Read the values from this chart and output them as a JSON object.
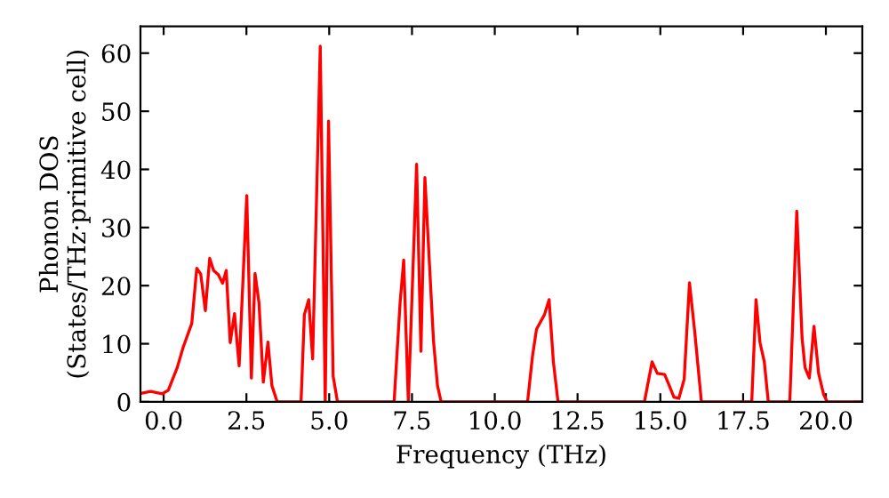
{
  "chart_data": {
    "type": "line",
    "xlabel": "Frequency (THz)",
    "ylabel": "Phonon DOS\n(States/THz·primitive cell)",
    "x": [
      -0.7,
      -0.66,
      -0.39,
      -0.04,
      0.14,
      0.41,
      0.59,
      0.85,
      1.0,
      1.12,
      1.26,
      1.39,
      1.51,
      1.65,
      1.78,
      1.89,
      2.01,
      2.14,
      2.28,
      2.51,
      2.65,
      2.76,
      2.88,
      3.01,
      3.15,
      3.27,
      3.43,
      4.15,
      4.25,
      4.38,
      4.5,
      4.73,
      4.88,
      4.98,
      5.12,
      5.25,
      6.96,
      7.14,
      7.25,
      7.39,
      7.64,
      7.77,
      7.89,
      8.15,
      8.27,
      8.38,
      10.99,
      11.14,
      11.26,
      11.5,
      11.64,
      11.77,
      11.91,
      14.52,
      14.75,
      14.91,
      15.13,
      15.27,
      15.41,
      15.56,
      15.72,
      15.88,
      16.04,
      16.24,
      17.76,
      17.89,
      18.01,
      18.14,
      18.26,
      18.91,
      19.12,
      19.28,
      19.37,
      19.5,
      19.64,
      19.78,
      19.93,
      20.04,
      21.1
    ],
    "series": [
      {
        "color": "#ff0000",
        "values": [
          1.4,
          1.5,
          1.8,
          1.4,
          2,
          5.9,
          9.4,
          13.5,
          23,
          22,
          15.7,
          24.7,
          22.6,
          21.9,
          20.4,
          22.6,
          10.2,
          15.2,
          6.2,
          35.5,
          4.1,
          22.1,
          17,
          3.4,
          10.3,
          2.8,
          0,
          0,
          15,
          17.6,
          7.4,
          61.2,
          0,
          48.3,
          4.4,
          0,
          0,
          17,
          24.4,
          0,
          40.9,
          8.7,
          38.6,
          10.5,
          2.8,
          0,
          0,
          7.9,
          12.5,
          15,
          17.6,
          6.9,
          0,
          0,
          6.9,
          4.9,
          4.7,
          2.8,
          0.8,
          0.6,
          3.9,
          20.5,
          12,
          0,
          0,
          17.6,
          10.2,
          6.9,
          0,
          0,
          32.8,
          11,
          5.9,
          4.1,
          13,
          4.9,
          1.3,
          0,
          0
        ]
      }
    ],
    "xlim": [
      -0.7,
      21.1
    ],
    "ylim": [
      0,
      64.6
    ],
    "xticks": [
      {
        "value": 0,
        "label": "0.0"
      },
      {
        "value": 2.5,
        "label": "2.5"
      },
      {
        "value": 5,
        "label": "5.0"
      },
      {
        "value": 7.5,
        "label": "7.5"
      },
      {
        "value": 10,
        "label": "10.0"
      },
      {
        "value": 12.5,
        "label": "12.5"
      },
      {
        "value": 15,
        "label": "15.0"
      },
      {
        "value": 17.5,
        "label": "17.5"
      },
      {
        "value": 20,
        "label": "20.0"
      }
    ],
    "yticks": [
      0,
      10,
      20,
      30,
      40,
      50,
      60
    ],
    "grid": false,
    "legend": false,
    "marker": "none",
    "line_style": "solid"
  }
}
